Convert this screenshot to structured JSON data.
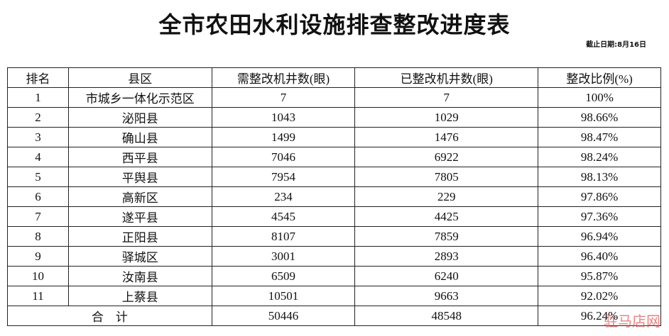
{
  "title": "全市农田水利设施排查整改进度表",
  "date_label": "截止日期:8月16日",
  "columns": [
    "排名",
    "县区",
    "需整改机井数(眼)",
    "已整改机井数(眼)",
    "整改比例(%)"
  ],
  "rows": [
    [
      "1",
      "市城乡一体化示范区",
      "7",
      "7",
      "100%"
    ],
    [
      "2",
      "泌阳县",
      "1043",
      "1029",
      "98.66%"
    ],
    [
      "3",
      "确山县",
      "1499",
      "1476",
      "98.47%"
    ],
    [
      "4",
      "西平县",
      "7046",
      "6922",
      "98.24%"
    ],
    [
      "5",
      "平舆县",
      "7954",
      "7805",
      "98.13%"
    ],
    [
      "6",
      "高新区",
      "234",
      "229",
      "97.86%"
    ],
    [
      "7",
      "遂平县",
      "4545",
      "4425",
      "97.36%"
    ],
    [
      "8",
      "正阳县",
      "8107",
      "7859",
      "96.94%"
    ],
    [
      "9",
      "驿城区",
      "3001",
      "2893",
      "96.40%"
    ],
    [
      "10",
      "汝南县",
      "6509",
      "6240",
      "95.87%"
    ],
    [
      "11",
      "上蔡县",
      "10501",
      "9663",
      "92.02%"
    ]
  ],
  "total": {
    "label": "合　计",
    "required": "50446",
    "done": "48548",
    "ratio": "96.24%"
  },
  "watermark": "驻马店网"
}
